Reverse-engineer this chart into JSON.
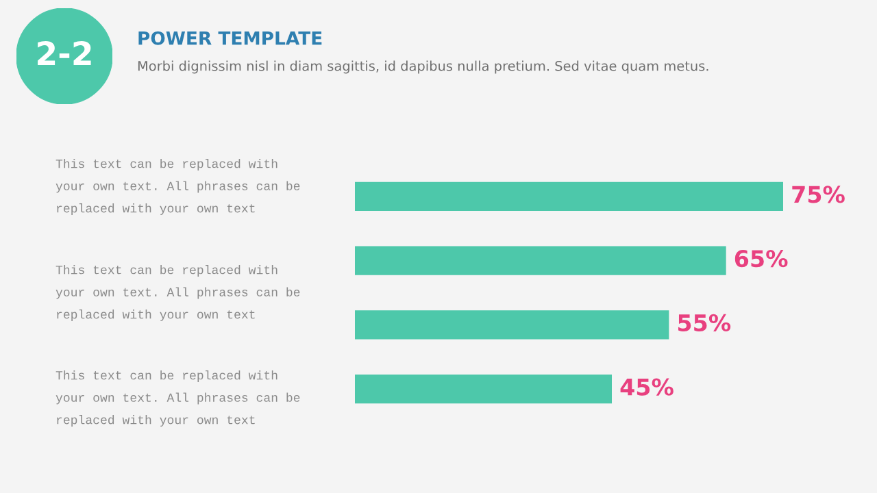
{
  "chart_data": {
    "type": "bar",
    "orientation": "horizontal",
    "title": "POWER TEMPLATE",
    "subtitle": "Morbi dignissim nisl in diam sagittis, id dapibus nulla pretium. Sed vitae quam metus.",
    "categories": [
      null,
      null,
      null,
      null
    ],
    "values": [
      75,
      65,
      55,
      45
    ],
    "value_labels": [
      "75%",
      "65%",
      "55%",
      "45%"
    ],
    "color": "#4dc8aa",
    "annotations": [
      "2-2",
      "This text can be replaced with\nyour own text. All phrases can be\nreplaced with your own text",
      "This text can be replaced with\nyour own text. All phrases can be\nreplaced with your own text",
      "This text can be replaced with\nyour own text. All phrases can be\nreplaced with your own text"
    ]
  }
}
